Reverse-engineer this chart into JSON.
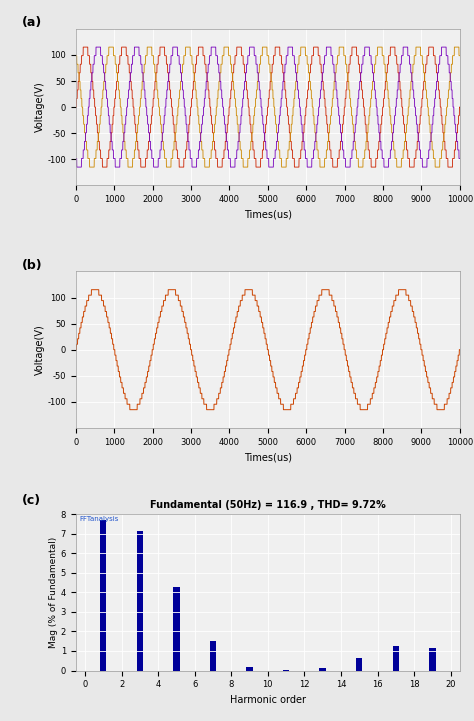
{
  "fig_width": 4.74,
  "fig_height": 7.21,
  "dpi": 100,
  "bg_color": "#e8e8e8",
  "plot_bg_color": "#f0f0f0",
  "plot_a": {
    "label": "(a)",
    "xlim": [
      0,
      10000
    ],
    "ylim": [
      -150,
      150
    ],
    "yticks": [
      -100,
      -50,
      0,
      50,
      100
    ],
    "xticks": [
      0,
      1000,
      2000,
      3000,
      4000,
      5000,
      6000,
      7000,
      8000,
      9000,
      10000
    ],
    "xlabel": "Times(us)",
    "ylabel": "Voltage(V)",
    "colors": [
      "#cc2200",
      "#cc8800",
      "#7700bb"
    ],
    "amplitude": 115,
    "period_us": 1000,
    "steps": 7
  },
  "plot_b": {
    "label": "(b)",
    "xlim": [
      0,
      10000
    ],
    "ylim": [
      -150,
      150
    ],
    "yticks": [
      -100,
      -50,
      0,
      50,
      100
    ],
    "xticks": [
      0,
      1000,
      2000,
      3000,
      4000,
      5000,
      6000,
      7000,
      8000,
      9000,
      10000
    ],
    "xlabel": "Times(us)",
    "ylabel": "Voltage(V)",
    "color": "#cc4400",
    "amplitude": 115,
    "period_us": 2000,
    "steps": 11
  },
  "plot_c": {
    "label": "(c)",
    "title": "Fundamental (50Hz) = 116.9 , THD= 9.72%",
    "xlabel": "Harmonic order",
    "ylabel": "Mag (% of Fundamental)",
    "xlim": [
      -0.5,
      20.5
    ],
    "ylim": [
      0,
      8
    ],
    "yticks": [
      0,
      1,
      2,
      3,
      4,
      5,
      6,
      7,
      8
    ],
    "xticks": [
      0,
      2,
      4,
      6,
      8,
      10,
      12,
      14,
      16,
      18,
      20
    ],
    "bar_color": "#000099",
    "harmonics": [
      1,
      3,
      5,
      7,
      9,
      11,
      13,
      15,
      17,
      19
    ],
    "magnitudes": [
      7.7,
      7.15,
      4.25,
      1.5,
      0.18,
      0.05,
      0.13,
      0.65,
      1.25,
      1.15
    ],
    "bar_width": 0.35,
    "annotation": "FFTanalysis"
  }
}
